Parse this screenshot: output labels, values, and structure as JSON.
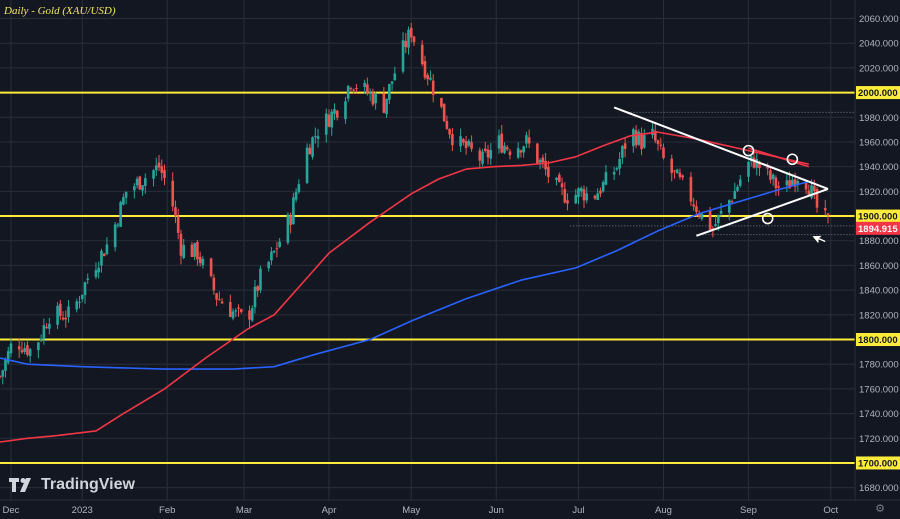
{
  "chart_data": {
    "type": "candlestick",
    "title": "Daily - Gold (XAU/USD)",
    "watermark": "TradingView",
    "ylim": [
      1670,
      2075
    ],
    "xlim_days": [
      0,
      302
    ],
    "y_ticks": [
      "2060.000",
      "2040.000",
      "2020.000",
      "1980.000",
      "1960.000",
      "1940.000",
      "1920.000",
      "1880.000",
      "1860.000",
      "1840.000",
      "1820.000",
      "1780.000",
      "1760.000",
      "1740.000",
      "1720.000",
      "1680.000"
    ],
    "y_tick_values": [
      2060,
      2040,
      2020,
      1980,
      1960,
      1940,
      1920,
      1880,
      1860,
      1840,
      1820,
      1780,
      1760,
      1740,
      1720,
      1680
    ],
    "x_ticks": [
      {
        "label": "Dec",
        "day": 4
      },
      {
        "label": "2023",
        "day": 30
      },
      {
        "label": "Feb",
        "day": 61
      },
      {
        "label": "Mar",
        "day": 89
      },
      {
        "label": "Apr",
        "day": 120
      },
      {
        "label": "May",
        "day": 150
      },
      {
        "label": "Jun",
        "day": 181
      },
      {
        "label": "Jul",
        "day": 211
      },
      {
        "label": "Aug",
        "day": 242
      },
      {
        "label": "Sep",
        "day": 273
      },
      {
        "label": "Oct",
        "day": 303
      }
    ],
    "horizontal_levels": [
      {
        "label": "2000.000",
        "value": 2000
      },
      {
        "label": "1900.000",
        "value": 1900
      },
      {
        "label": "1800.000",
        "value": 1800
      },
      {
        "label": "1700.000",
        "value": 1700
      }
    ],
    "last_price": {
      "label": "1894.915",
      "value": 1894.915
    },
    "colors": {
      "background": "#131722",
      "grid": "#2a2e39",
      "up": "#26a69a",
      "down": "#ef5350",
      "level": "#ffeb3b",
      "ma_fast": "#2962ff",
      "ma_slow": "#f23645",
      "trendline": "#ffffff",
      "axis_text": "#b2b5be",
      "last_price": "#f23645"
    },
    "series": [
      {
        "name": "Close",
        "anchors": [
          [
            0,
            1770
          ],
          [
            5,
            1800
          ],
          [
            12,
            1790
          ],
          [
            18,
            1820
          ],
          [
            26,
            1820
          ],
          [
            33,
            1855
          ],
          [
            40,
            1880
          ],
          [
            46,
            1920
          ],
          [
            52,
            1930
          ],
          [
            58,
            1940
          ],
          [
            62,
            1920
          ],
          [
            66,
            1875
          ],
          [
            72,
            1870
          ],
          [
            79,
            1835
          ],
          [
            86,
            1820
          ],
          [
            90,
            1815
          ],
          [
            95,
            1850
          ],
          [
            100,
            1870
          ],
          [
            106,
            1900
          ],
          [
            111,
            1950
          ],
          [
            116,
            1970
          ],
          [
            120,
            1980
          ],
          [
            124,
            1990
          ],
          [
            128,
            2010
          ],
          [
            134,
            2000
          ],
          [
            140,
            1990
          ],
          [
            146,
            2030
          ],
          [
            150,
            2050
          ],
          [
            153,
            2030
          ],
          [
            157,
            2010
          ],
          [
            162,
            1980
          ],
          [
            166,
            1960
          ],
          [
            170,
            1955
          ],
          [
            176,
            1945
          ],
          [
            182,
            1960
          ],
          [
            186,
            1955
          ],
          [
            192,
            1960
          ],
          [
            198,
            1940
          ],
          [
            204,
            1920
          ],
          [
            208,
            1915
          ],
          [
            212,
            1920
          ],
          [
            216,
            1915
          ],
          [
            220,
            1925
          ],
          [
            225,
            1940
          ],
          [
            230,
            1970
          ],
          [
            234,
            1960
          ],
          [
            238,
            1965
          ],
          [
            243,
            1940
          ],
          [
            247,
            1930
          ],
          [
            252,
            1915
          ],
          [
            256,
            1900
          ],
          [
            260,
            1890
          ],
          [
            264,
            1905
          ],
          [
            268,
            1920
          ],
          [
            272,
            1940
          ],
          [
            275,
            1945
          ],
          [
            279,
            1935
          ],
          [
            283,
            1925
          ],
          [
            286,
            1920
          ],
          [
            289,
            1930
          ],
          [
            292,
            1935
          ],
          [
            295,
            1925
          ],
          [
            299,
            1900
          ],
          [
            302,
            1895
          ]
        ]
      },
      {
        "name": "MA fast",
        "points": [
          [
            0,
            1785
          ],
          [
            10,
            1780
          ],
          [
            30,
            1778
          ],
          [
            60,
            1776
          ],
          [
            85,
            1776
          ],
          [
            100,
            1778
          ],
          [
            115,
            1788
          ],
          [
            135,
            1800
          ],
          [
            150,
            1815
          ],
          [
            170,
            1833
          ],
          [
            190,
            1848
          ],
          [
            210,
            1858
          ],
          [
            225,
            1872
          ],
          [
            240,
            1888
          ],
          [
            255,
            1902
          ],
          [
            270,
            1912
          ],
          [
            285,
            1922
          ],
          [
            295,
            1928
          ]
        ]
      },
      {
        "name": "MA slow",
        "points": [
          [
            0,
            1717
          ],
          [
            10,
            1720
          ],
          [
            20,
            1722
          ],
          [
            35,
            1726
          ],
          [
            45,
            1740
          ],
          [
            60,
            1760
          ],
          [
            75,
            1785
          ],
          [
            90,
            1808
          ],
          [
            100,
            1820
          ],
          [
            110,
            1845
          ],
          [
            120,
            1870
          ],
          [
            135,
            1895
          ],
          [
            150,
            1918
          ],
          [
            160,
            1930
          ],
          [
            170,
            1938
          ],
          [
            180,
            1940
          ],
          [
            190,
            1941
          ],
          [
            200,
            1943
          ],
          [
            210,
            1948
          ],
          [
            220,
            1957
          ],
          [
            230,
            1965
          ],
          [
            240,
            1968
          ],
          [
            255,
            1962
          ],
          [
            265,
            1957
          ],
          [
            275,
            1952
          ],
          [
            285,
            1947
          ],
          [
            295,
            1942
          ]
        ]
      },
      {
        "name": "Triangle upper",
        "points": [
          [
            224,
            1988
          ],
          [
            302,
            1922
          ]
        ]
      },
      {
        "name": "Triangle lower",
        "points": [
          [
            254,
            1884
          ],
          [
            302,
            1922
          ]
        ]
      },
      {
        "name": "Triangle upper ext",
        "points": [
          [
            273,
            1955
          ],
          [
            295,
            1940
          ]
        ]
      }
    ],
    "touch_markers": [
      [
        273,
        1953
      ],
      [
        289,
        1946
      ],
      [
        280,
        1898
      ]
    ],
    "extra_levels": [
      [
        208,
        1892
      ],
      [
        254,
        1885
      ],
      [
        230,
        1984
      ]
    ]
  }
}
